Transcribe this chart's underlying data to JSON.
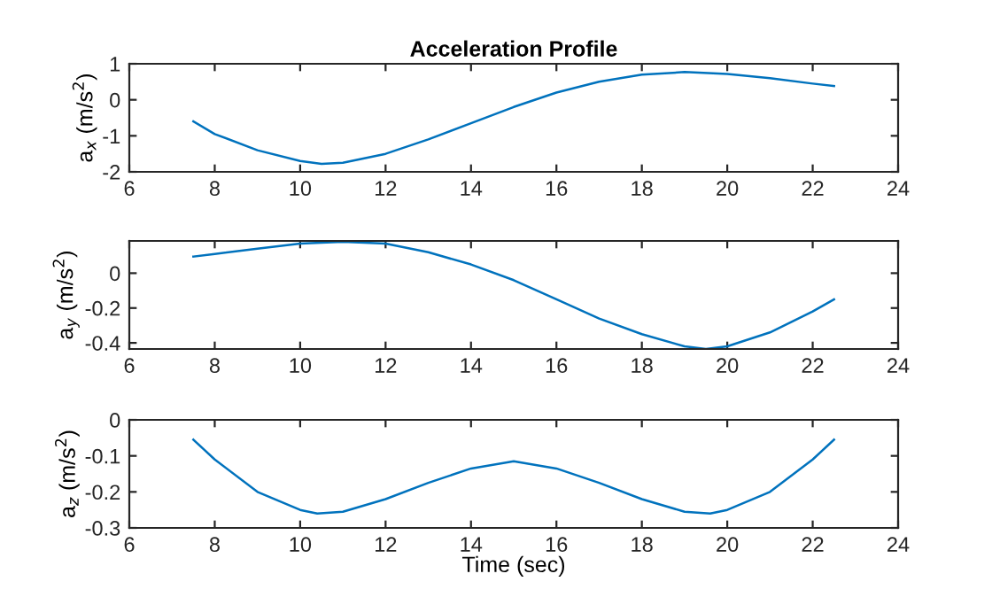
{
  "chart_data": [
    {
      "type": "line",
      "title": "Acceleration Profile",
      "ylabel": "a$_{x}$ (m/s$^{2}$)",
      "x": [
        7.5,
        8,
        9,
        10,
        10.5,
        11,
        12,
        13,
        14,
        15,
        16,
        17,
        18,
        19,
        20,
        21,
        22,
        22.5
      ],
      "series": [
        {
          "color": "#0072bd",
          "values": [
            -0.6,
            -0.95,
            -1.4,
            -1.7,
            -1.78,
            -1.75,
            -1.5,
            -1.1,
            -0.65,
            -0.2,
            0.2,
            0.5,
            0.7,
            0.77,
            0.72,
            0.6,
            0.45,
            0.38
          ]
        }
      ],
      "xlim": [
        6,
        24
      ],
      "xticks": [
        6,
        8,
        10,
        12,
        14,
        16,
        18,
        20,
        22,
        24
      ],
      "ylim": [
        -2,
        1
      ],
      "yticks": [
        -2,
        -1,
        0,
        1
      ],
      "grid": false
    },
    {
      "type": "line",
      "ylabel": "a$_{y}$ (m/s$^{2}$)",
      "x": [
        7.5,
        8,
        9,
        10,
        11,
        12,
        13,
        14,
        15,
        16,
        17,
        18,
        19,
        19.5,
        20,
        21,
        22,
        22.5
      ],
      "series": [
        {
          "color": "#0072bd",
          "values": [
            0.095,
            0.11,
            0.14,
            0.17,
            0.18,
            0.17,
            0.12,
            0.05,
            -0.04,
            -0.15,
            -0.26,
            -0.35,
            -0.42,
            -0.435,
            -0.42,
            -0.34,
            -0.22,
            -0.15
          ]
        }
      ],
      "xlim": [
        6,
        24
      ],
      "xticks": [
        6,
        8,
        10,
        12,
        14,
        16,
        18,
        20,
        22,
        24
      ],
      "ylim": [
        -0.435,
        0.185
      ],
      "yticks": [
        -0.4,
        -0.2,
        0
      ],
      "grid": false
    },
    {
      "type": "line",
      "xlabel": "Time (sec)",
      "ylabel": "a$_{z}$ (m/s$^{2}$)",
      "x": [
        7.5,
        8,
        9,
        10,
        10.4,
        11,
        12,
        13,
        14,
        15,
        16,
        17,
        18,
        19,
        19.6,
        20,
        21,
        22,
        22.5
      ],
      "series": [
        {
          "color": "#0072bd",
          "values": [
            -0.055,
            -0.11,
            -0.2,
            -0.25,
            -0.26,
            -0.255,
            -0.22,
            -0.175,
            -0.135,
            -0.115,
            -0.135,
            -0.175,
            -0.22,
            -0.255,
            -0.26,
            -0.25,
            -0.2,
            -0.11,
            -0.055
          ]
        }
      ],
      "xlim": [
        6,
        24
      ],
      "xticks": [
        6,
        8,
        10,
        12,
        14,
        16,
        18,
        20,
        22,
        24
      ],
      "ylim": [
        -0.3,
        0
      ],
      "yticks": [
        -0.3,
        -0.2,
        -0.1,
        0
      ],
      "grid": false
    }
  ]
}
